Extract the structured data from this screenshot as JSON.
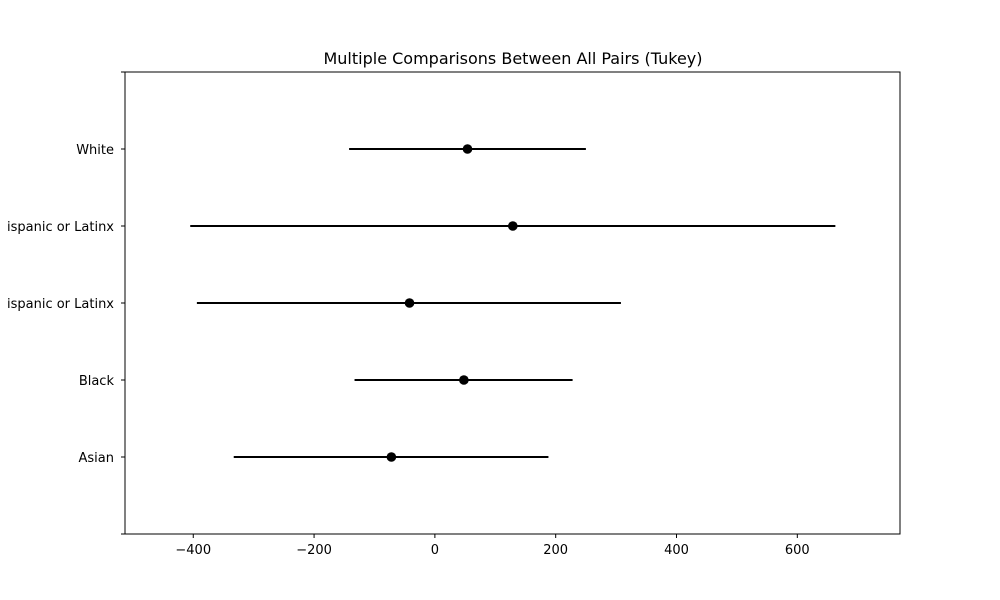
{
  "chart_data": {
    "type": "scatter",
    "title": "Multiple Comparisons Between All Pairs (Tukey)",
    "xlabel": "",
    "ylabel": "",
    "xlim": [
      -513,
      770
    ],
    "x_ticks": [
      -400,
      -200,
      0,
      200,
      400,
      600
    ],
    "x_tick_labels": [
      "−400",
      "−200",
      "0",
      "200",
      "400",
      "600"
    ],
    "categories": [
      "Asian",
      "Black",
      "Hispanic or Latinx",
      "Not Hispanic or Latinx",
      "White"
    ],
    "category_labels_visible": [
      "Asian",
      "Black",
      "ispanic or Latinx",
      "ispanic or Latinx",
      "White"
    ],
    "series": [
      {
        "values": [
          {
            "category": "Asian",
            "mean": -72,
            "lower": -333,
            "upper": 188
          },
          {
            "category": "Black",
            "mean": 48,
            "lower": -133,
            "upper": 228
          },
          {
            "category": "Hispanic or Latinx",
            "mean": -42,
            "lower": -394,
            "upper": 308
          },
          {
            "category": "Not Hispanic or Latinx",
            "mean": 129,
            "lower": -405,
            "upper": 663
          },
          {
            "category": "White",
            "mean": 54,
            "lower": -142,
            "upper": 250
          }
        ]
      }
    ],
    "grid": false,
    "legend": "none"
  }
}
